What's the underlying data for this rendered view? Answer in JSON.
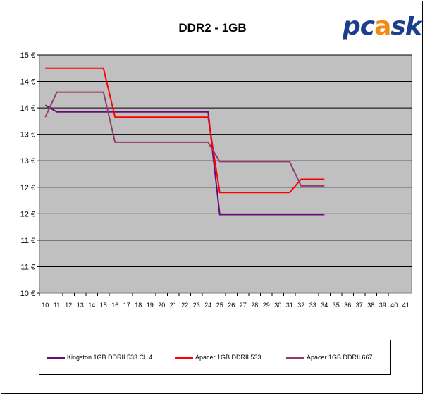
{
  "logo": {
    "text_left": "pc",
    "text_mid": "a",
    "text_right": "sk"
  },
  "chart_data": {
    "type": "line",
    "title": "DDR2 - 1GB",
    "xlabel": "",
    "ylabel": "",
    "x": [
      10,
      11,
      12,
      13,
      14,
      15,
      16,
      17,
      18,
      19,
      20,
      21,
      22,
      23,
      24,
      25,
      26,
      27,
      28,
      29,
      30,
      31,
      32,
      33,
      34,
      35,
      36,
      37,
      38,
      39,
      40,
      41
    ],
    "xlim": [
      10,
      41
    ],
    "ylim": [
      10,
      19
    ],
    "y_tick_labels": [
      "10 €",
      "11 €",
      "11 €",
      "12 €",
      "12 €",
      "13 €",
      "13 €",
      "14 €",
      "14 €",
      "15 €"
    ],
    "grid": true,
    "legend_position": "bottom",
    "series": [
      {
        "name": "Kingston 1GB DDRII 533 CL 4",
        "color": "#6a0a7a",
        "points": [
          [
            10,
            17.1
          ],
          [
            11,
            16.85
          ],
          [
            24,
            16.85
          ],
          [
            25,
            12.97
          ],
          [
            34,
            12.97
          ]
        ]
      },
      {
        "name": "Apacer 1GB DDRII 533",
        "color": "#ff0000",
        "points": [
          [
            10,
            18.5
          ],
          [
            15,
            18.5
          ],
          [
            16,
            16.65
          ],
          [
            24,
            16.65
          ],
          [
            25,
            13.8
          ],
          [
            31,
            13.8
          ],
          [
            32,
            14.3
          ],
          [
            34,
            14.3
          ]
        ]
      },
      {
        "name": "Apacer 1GB DDRII 667",
        "color": "#953a6b",
        "points": [
          [
            10,
            16.65
          ],
          [
            11,
            17.6
          ],
          [
            15,
            17.6
          ],
          [
            16,
            15.7
          ],
          [
            24,
            15.7
          ],
          [
            25,
            14.97
          ],
          [
            31,
            14.97
          ],
          [
            32,
            14.05
          ],
          [
            34,
            14.05
          ]
        ]
      }
    ]
  }
}
